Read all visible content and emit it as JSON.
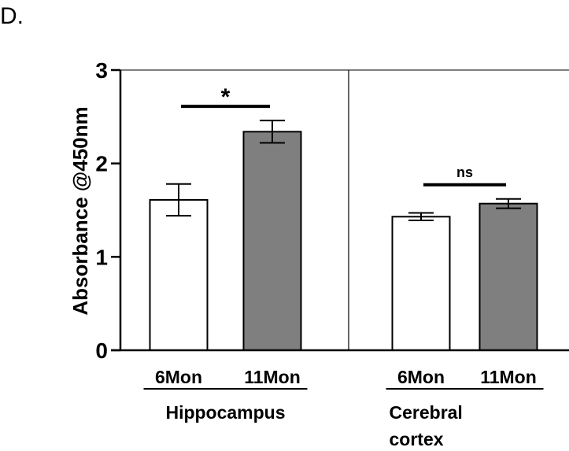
{
  "panel_label": "D.",
  "chart_data": {
    "type": "bar",
    "ylabel": "Absorbance @450nm",
    "ylim": [
      0,
      3
    ],
    "yticks": [
      0,
      1,
      2,
      3
    ],
    "groups": [
      {
        "name": "Hippocampus",
        "name_lines": [
          "Hippocampus"
        ],
        "bars": [
          {
            "label": "6Mon",
            "value": 1.61,
            "error": 0.17,
            "fill": "#ffffff"
          },
          {
            "label": "11Mon",
            "value": 2.34,
            "error": 0.12,
            "fill": "#7f7f7f"
          }
        ],
        "significance": "*"
      },
      {
        "name": "Cerebral cortex",
        "name_lines": [
          "Cerebral",
          "cortex"
        ],
        "bars": [
          {
            "label": "6Mon",
            "value": 1.43,
            "error": 0.04,
            "fill": "#ffffff"
          },
          {
            "label": "11Mon",
            "value": 1.57,
            "error": 0.05,
            "fill": "#7f7f7f"
          }
        ],
        "significance": "ns"
      }
    ]
  }
}
